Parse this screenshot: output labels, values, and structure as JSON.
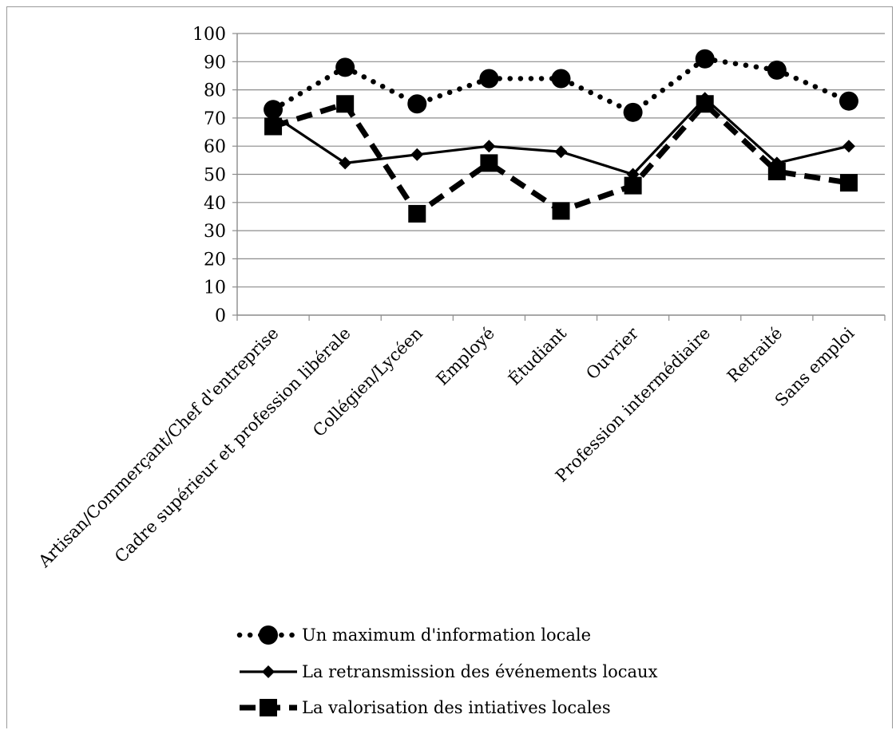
{
  "chart_data": {
    "type": "line",
    "categories": [
      "Artisan/Commerçant/Chef d'entreprise",
      "Cadre supérieur et profession libérale",
      "Collégien/Lycéen",
      "Employé",
      "Étudiant",
      "Ouvrier",
      "Profession intermédiaire",
      "Retraité",
      "Sans emploi"
    ],
    "series": [
      {
        "name": "Un maximum d'information locale",
        "values": [
          73,
          88,
          75,
          84,
          84,
          72,
          91,
          87,
          76
        ],
        "style": "dotted",
        "marker": "circle"
      },
      {
        "name": "La retransmission des événements locaux",
        "values": [
          71,
          54,
          57,
          60,
          58,
          50,
          77,
          54,
          60
        ],
        "style": "solid",
        "marker": "diamond"
      },
      {
        "name": "La valorisation des intiatives locales",
        "values": [
          67,
          75,
          36,
          54,
          37,
          46,
          75,
          51,
          47
        ],
        "style": "dashed",
        "marker": "square"
      }
    ],
    "ylim": [
      0,
      100
    ],
    "yticks": [
      "0",
      "10",
      "20",
      "30",
      "40",
      "50",
      "60",
      "70",
      "80",
      "90",
      "100"
    ],
    "grid": true,
    "legend_position": "bottom",
    "line_color": "#000000",
    "grid_color": "#8c8c8c"
  }
}
